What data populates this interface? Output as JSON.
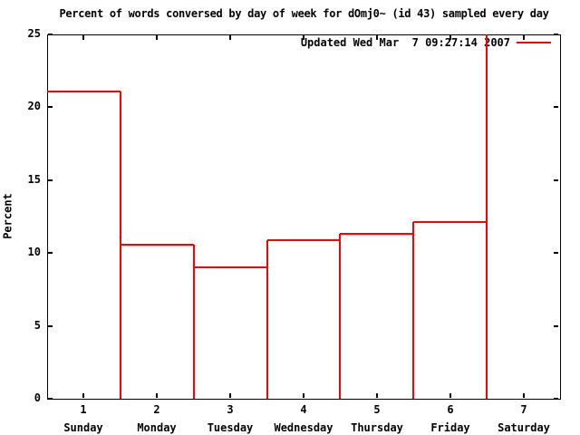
{
  "title": "Percent of words conversed by day of week for dOmj0~ (id 43) sampled every day",
  "ylabel": "Percent",
  "legend": {
    "label": "Updated Wed Mar  7 09:27:14 2007",
    "line_color": "#ff0000",
    "position": "top-right-inside"
  },
  "colors": {
    "series": "#ff0000",
    "axis": "#000000",
    "background": "#ffffff"
  },
  "chart_data": {
    "type": "bar",
    "style": "gnuplot box/step outline (unfilled red boxes, shared full-height edges)",
    "title": "Percent of words conversed by day of week for dOmj0~ (id 43) sampled every day",
    "xlabel": "",
    "ylabel": "Percent",
    "x": [
      1,
      2,
      3,
      4,
      5,
      6,
      7
    ],
    "x_tick_labels": [
      "1",
      "2",
      "3",
      "4",
      "5",
      "6",
      "7"
    ],
    "categories": [
      "Sunday",
      "Monday",
      "Tuesday",
      "Wednesday",
      "Thursday",
      "Friday",
      "Saturday"
    ],
    "values": [
      21.1,
      10.6,
      9.0,
      10.9,
      11.3,
      12.1,
      25.0
    ],
    "y_ticks": [
      0,
      5,
      10,
      15,
      20,
      25
    ],
    "ylim": [
      0,
      25
    ],
    "xlim": [
      0.5,
      7.5
    ],
    "grid": false,
    "legend": "Updated Wed Mar  7 09:27:14 2007",
    "legend_position": "top-right inside plot",
    "series_color": "#ff0000",
    "note": "Saturday's value reaches/exceeds the y-axis max (~25) so its top cap is clipped; the boundary line at x=6.5 runs the full plot height"
  }
}
